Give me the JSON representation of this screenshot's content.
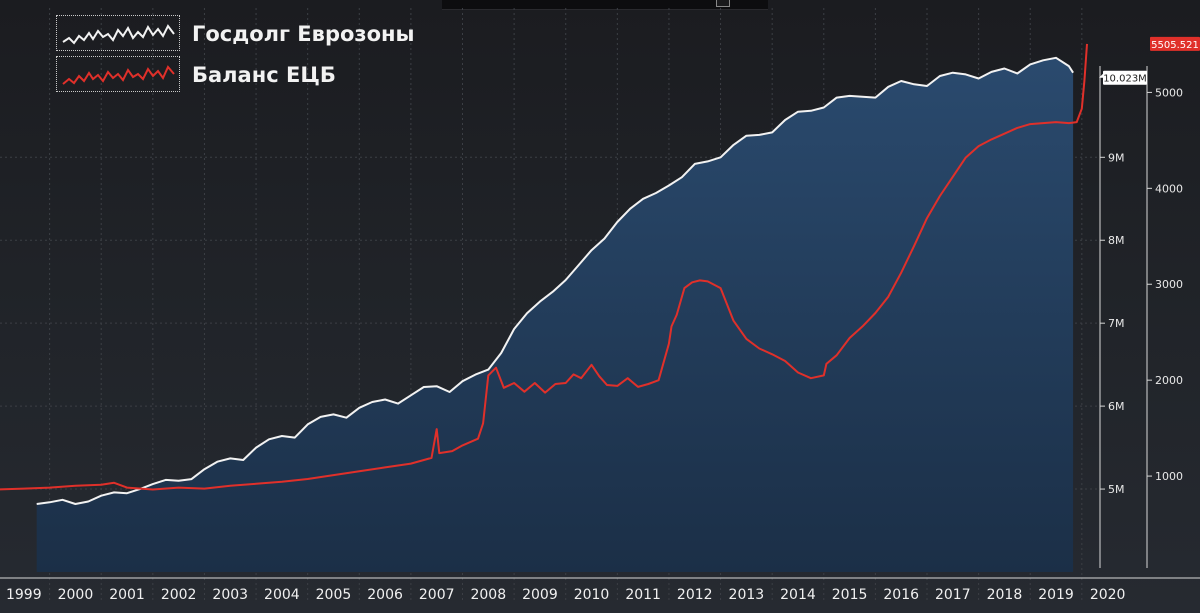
{
  "chart_data": {
    "type": "area",
    "legend": [
      {
        "label": "Госдолг Еврозоны",
        "color": "#f2f2f2"
      },
      {
        "label": "Баланс ЕЦБ",
        "color": "#e0302a"
      }
    ],
    "legend_position": "top-left",
    "x_tick_labels": [
      "1999",
      "2000",
      "2001",
      "2002",
      "2003",
      "2004",
      "2005",
      "2006",
      "2007",
      "2008",
      "2009",
      "2010",
      "2011",
      "2012",
      "2013",
      "2014",
      "2015",
      "2016",
      "2017",
      "2018",
      "2019",
      "2020"
    ],
    "xlim": [
      1999.0,
      2020.1
    ],
    "left_axis": {
      "tick_labels": [
        "5M",
        "6M",
        "7M",
        "8M",
        "9M"
      ],
      "ticks": [
        5,
        6,
        7,
        8,
        9
      ],
      "ylim": [
        4.0,
        10.8
      ]
    },
    "right_axis": {
      "tick_labels": [
        "1000",
        "2000",
        "3000",
        "4000",
        "5000"
      ],
      "ticks": [
        1000,
        2000,
        3000,
        4000,
        5000
      ],
      "ylim": [
        0,
        5880
      ]
    },
    "series": [
      {
        "name": "Госдолг Еврозоны",
        "axis": "left",
        "style": "area",
        "color": "#f2f2f2",
        "fill": "#213a57",
        "last_value_label": "10.023M",
        "points": [
          [
            1999.75,
            4.82
          ],
          [
            2000.0,
            4.84
          ],
          [
            2000.25,
            4.87
          ],
          [
            2000.5,
            4.82
          ],
          [
            2000.75,
            4.85
          ],
          [
            2001.0,
            4.92
          ],
          [
            2001.25,
            4.96
          ],
          [
            2001.5,
            4.95
          ],
          [
            2001.75,
            5.0
          ],
          [
            2002.0,
            5.06
          ],
          [
            2002.25,
            5.11
          ],
          [
            2002.5,
            5.1
          ],
          [
            2002.75,
            5.12
          ],
          [
            2003.0,
            5.24
          ],
          [
            2003.25,
            5.33
          ],
          [
            2003.5,
            5.37
          ],
          [
            2003.75,
            5.35
          ],
          [
            2004.0,
            5.5
          ],
          [
            2004.25,
            5.6
          ],
          [
            2004.5,
            5.64
          ],
          [
            2004.75,
            5.62
          ],
          [
            2005.0,
            5.78
          ],
          [
            2005.25,
            5.87
          ],
          [
            2005.5,
            5.9
          ],
          [
            2005.75,
            5.86
          ],
          [
            2006.0,
            5.98
          ],
          [
            2006.25,
            6.05
          ],
          [
            2006.5,
            6.08
          ],
          [
            2006.75,
            6.03
          ],
          [
            2007.0,
            6.13
          ],
          [
            2007.25,
            6.23
          ],
          [
            2007.5,
            6.24
          ],
          [
            2007.75,
            6.17
          ],
          [
            2008.0,
            6.3
          ],
          [
            2008.25,
            6.38
          ],
          [
            2008.5,
            6.44
          ],
          [
            2008.75,
            6.64
          ],
          [
            2009.0,
            6.93
          ],
          [
            2009.25,
            7.12
          ],
          [
            2009.5,
            7.26
          ],
          [
            2009.75,
            7.38
          ],
          [
            2010.0,
            7.52
          ],
          [
            2010.25,
            7.7
          ],
          [
            2010.5,
            7.88
          ],
          [
            2010.75,
            8.02
          ],
          [
            2011.0,
            8.22
          ],
          [
            2011.25,
            8.38
          ],
          [
            2011.5,
            8.5
          ],
          [
            2011.75,
            8.57
          ],
          [
            2012.0,
            8.66
          ],
          [
            2012.25,
            8.76
          ],
          [
            2012.5,
            8.92
          ],
          [
            2012.75,
            8.95
          ],
          [
            2013.0,
            9.0
          ],
          [
            2013.25,
            9.15
          ],
          [
            2013.5,
            9.26
          ],
          [
            2013.75,
            9.27
          ],
          [
            2014.0,
            9.3
          ],
          [
            2014.25,
            9.45
          ],
          [
            2014.5,
            9.55
          ],
          [
            2014.75,
            9.56
          ],
          [
            2015.0,
            9.6
          ],
          [
            2015.25,
            9.72
          ],
          [
            2015.5,
            9.74
          ],
          [
            2015.75,
            9.73
          ],
          [
            2016.0,
            9.72
          ],
          [
            2016.25,
            9.85
          ],
          [
            2016.5,
            9.92
          ],
          [
            2016.75,
            9.88
          ],
          [
            2017.0,
            9.86
          ],
          [
            2017.25,
            9.98
          ],
          [
            2017.5,
            10.02
          ],
          [
            2017.75,
            10.0
          ],
          [
            2018.0,
            9.95
          ],
          [
            2018.25,
            10.03
          ],
          [
            2018.5,
            10.07
          ],
          [
            2018.75,
            10.01
          ],
          [
            2019.0,
            10.12
          ],
          [
            2019.25,
            10.17
          ],
          [
            2019.5,
            10.2
          ],
          [
            2019.75,
            10.1
          ],
          [
            2019.83,
            10.02
          ]
        ]
      },
      {
        "name": "Баланс ЕЦБ",
        "axis": "right",
        "style": "line",
        "color": "#e0302a",
        "last_value_label": "5505.521",
        "points": [
          [
            1999.0,
            860
          ],
          [
            1999.5,
            870
          ],
          [
            2000.0,
            880
          ],
          [
            2000.5,
            900
          ],
          [
            2001.0,
            910
          ],
          [
            2001.25,
            930
          ],
          [
            2001.5,
            880
          ],
          [
            2002.0,
            860
          ],
          [
            2002.5,
            880
          ],
          [
            2003.0,
            870
          ],
          [
            2003.5,
            900
          ],
          [
            2004.0,
            920
          ],
          [
            2004.5,
            940
          ],
          [
            2005.0,
            970
          ],
          [
            2005.5,
            1010
          ],
          [
            2006.0,
            1050
          ],
          [
            2006.5,
            1090
          ],
          [
            2007.0,
            1130
          ],
          [
            2007.4,
            1190
          ],
          [
            2007.5,
            1490
          ],
          [
            2007.55,
            1240
          ],
          [
            2007.8,
            1260
          ],
          [
            2008.0,
            1320
          ],
          [
            2008.3,
            1390
          ],
          [
            2008.4,
            1550
          ],
          [
            2008.5,
            2050
          ],
          [
            2008.65,
            2130
          ],
          [
            2008.8,
            1920
          ],
          [
            2009.0,
            1970
          ],
          [
            2009.2,
            1880
          ],
          [
            2009.4,
            1970
          ],
          [
            2009.6,
            1870
          ],
          [
            2009.8,
            1960
          ],
          [
            2010.0,
            1970
          ],
          [
            2010.15,
            2060
          ],
          [
            2010.3,
            2020
          ],
          [
            2010.5,
            2160
          ],
          [
            2010.65,
            2040
          ],
          [
            2010.8,
            1950
          ],
          [
            2011.0,
            1940
          ],
          [
            2011.2,
            2020
          ],
          [
            2011.4,
            1930
          ],
          [
            2011.6,
            1960
          ],
          [
            2011.8,
            2000
          ],
          [
            2012.0,
            2380
          ],
          [
            2012.05,
            2560
          ],
          [
            2012.15,
            2680
          ],
          [
            2012.3,
            2960
          ],
          [
            2012.45,
            3020
          ],
          [
            2012.6,
            3040
          ],
          [
            2012.75,
            3030
          ],
          [
            2013.0,
            2960
          ],
          [
            2013.25,
            2620
          ],
          [
            2013.5,
            2430
          ],
          [
            2013.75,
            2330
          ],
          [
            2014.0,
            2270
          ],
          [
            2014.25,
            2200
          ],
          [
            2014.5,
            2080
          ],
          [
            2014.75,
            2020
          ],
          [
            2015.0,
            2050
          ],
          [
            2015.05,
            2170
          ],
          [
            2015.25,
            2260
          ],
          [
            2015.5,
            2440
          ],
          [
            2015.75,
            2560
          ],
          [
            2016.0,
            2700
          ],
          [
            2016.25,
            2870
          ],
          [
            2016.5,
            3120
          ],
          [
            2016.75,
            3400
          ],
          [
            2017.0,
            3690
          ],
          [
            2017.25,
            3920
          ],
          [
            2017.5,
            4120
          ],
          [
            2017.75,
            4320
          ],
          [
            2018.0,
            4440
          ],
          [
            2018.25,
            4510
          ],
          [
            2018.5,
            4570
          ],
          [
            2018.75,
            4630
          ],
          [
            2019.0,
            4670
          ],
          [
            2019.25,
            4680
          ],
          [
            2019.5,
            4690
          ],
          [
            2019.75,
            4680
          ],
          [
            2019.9,
            4690
          ],
          [
            2020.0,
            4830
          ],
          [
            2020.05,
            5120
          ],
          [
            2020.1,
            5505.521
          ]
        ]
      }
    ]
  }
}
